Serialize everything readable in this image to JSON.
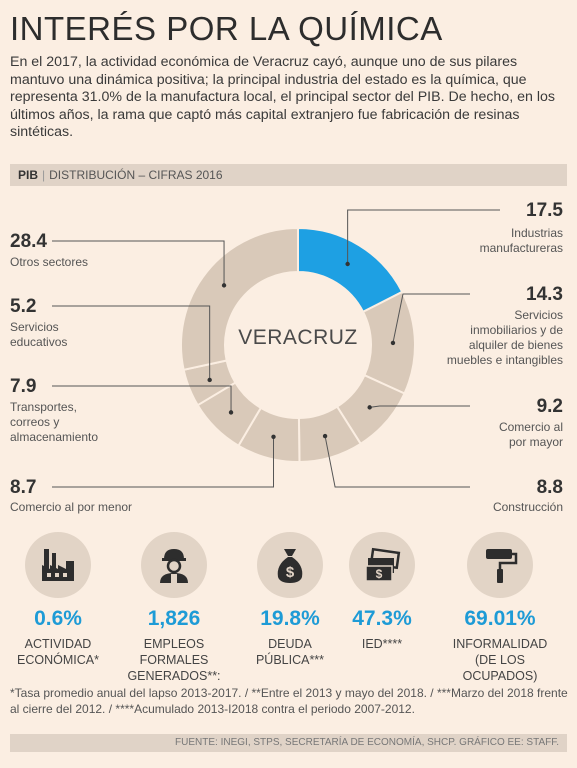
{
  "title": "INTERÉS POR LA QUÍMICA",
  "intro": "En el 2017, la actividad económica de Veracruz cayó, aunque uno de sus pilares mantuvo una dinámica positiva; la principal industria del estado es la química, que representa 31.0% de la manufactura local, el principal sector del PIB. De hecho, en los últimos años, la rama que captó más capital extranjero fue fabricación de resinas sintéticas.",
  "section": {
    "tag": "PIB",
    "subtitle": "DISTRIBUCIÓN – CIFRAS 2016"
  },
  "chart_data": {
    "type": "pie",
    "variant": "donut",
    "center_label": "VERACRUZ",
    "slices": [
      {
        "label": "Industrias manufactureras",
        "value": 17.5,
        "color": "#1ea0e3"
      },
      {
        "label": "Servicios inmobiliarios y de alquiler de bienes muebles e intangibles",
        "value": 14.3,
        "color": "#d9c9b9"
      },
      {
        "label": "Comercio al por mayor",
        "value": 9.2,
        "color": "#d9c9b9"
      },
      {
        "label": "Construcción",
        "value": 8.8,
        "color": "#d9c9b9"
      },
      {
        "label": "Comercio al por menor",
        "value": 8.7,
        "color": "#d9c9b9"
      },
      {
        "label": "Transportes, correos y almacenamiento",
        "value": 7.9,
        "color": "#d9c9b9"
      },
      {
        "label": "Servicios educativos",
        "value": 5.2,
        "color": "#d9c9b9"
      },
      {
        "label": "Otros sectores",
        "value": 28.4,
        "color": "#d9c9b9"
      }
    ],
    "display": {
      "manufactureras": {
        "value": "17.5",
        "label_lines": [
          "Industrias",
          "manufactureras"
        ]
      },
      "inmobiliarios": {
        "value": "14.3",
        "label_lines": [
          "Servicios",
          "inmobiliarios y de",
          "alquiler de bienes",
          "muebles e intangibles"
        ]
      },
      "mayor": {
        "value": "9.2",
        "label_lines": [
          "Comercio al",
          "por mayor"
        ]
      },
      "construccion": {
        "value": "8.8",
        "label_lines": [
          "Construcción"
        ]
      },
      "menor": {
        "value": "8.7",
        "label_lines": [
          "Comercio al por menor"
        ]
      },
      "transportes": {
        "value": "7.9",
        "label_lines": [
          "Transportes,",
          "correos y",
          "almacenamiento"
        ]
      },
      "educativos": {
        "value": "5.2",
        "label_lines": [
          "Servicios",
          "educativos"
        ]
      },
      "otros": {
        "value": "28.4",
        "label_lines": [
          "Otros sectores"
        ]
      }
    }
  },
  "indicators": [
    {
      "icon": "factory-icon",
      "value": "0.6%",
      "caption_lines": [
        "ACTIVIDAD",
        "ECONÓMICA*"
      ]
    },
    {
      "icon": "worker-icon",
      "value": "1,826",
      "caption_lines": [
        "EMPLEOS FORMALES",
        "GENERADOS**:"
      ]
    },
    {
      "icon": "money-bag-icon",
      "value": "19.8%",
      "caption_lines": [
        "DEUDA",
        "PÚBLICA***"
      ]
    },
    {
      "icon": "banknotes-icon",
      "value": "47.3%",
      "caption_lines": [
        "IED****"
      ]
    },
    {
      "icon": "paint-roller-icon",
      "value": "69.01%",
      "caption_lines": [
        "INFORMALIDAD",
        "(DE LOS OCUPADOS)"
      ]
    }
  ],
  "notes": "*Tasa promedio anual del lapso 2013-2017. / **Entre el 2013 y mayo del 2018. / ***Marzo del 2018 frente al cierre del 2012. / ****Acumulado 2013-I2018 contra el periodo 2007-2012.",
  "source": "FUENTE: INEGI, STPS, SECRETARÍA DE ECONOMÍA, SHCP.  GRÁFICO EE: STAFF.",
  "colors": {
    "accent": "#1ea0e3",
    "slice": "#d9c9b9",
    "background": "#fbeee2",
    "bar": "#e0d3c7"
  }
}
